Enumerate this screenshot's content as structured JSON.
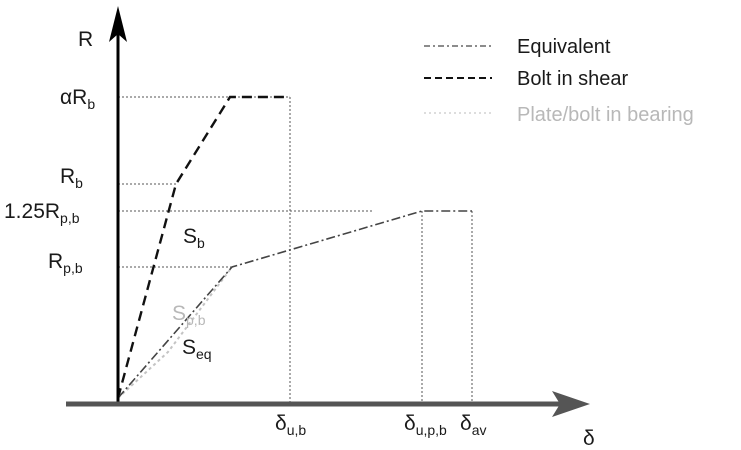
{
  "axes": {
    "y_label": "R",
    "x_label": "δ"
  },
  "y_ticks": [
    {
      "main": "αR",
      "sub": "b"
    },
    {
      "main": "R",
      "sub": "b"
    },
    {
      "main": "1.25R",
      "sub": "p,b"
    },
    {
      "main": "R",
      "sub": "p,b"
    }
  ],
  "x_ticks": [
    {
      "main": "δ",
      "sub": "u,b"
    },
    {
      "main": "δ",
      "sub": "u,p,b"
    },
    {
      "main": "δ",
      "sub": "av"
    }
  ],
  "curve_labels": {
    "bolt": {
      "main": "S",
      "sub": "b"
    },
    "plate": {
      "main": "S",
      "sub": "p,b"
    },
    "equivalent": {
      "main": "S",
      "sub": "eq"
    }
  },
  "legend": [
    {
      "label": "Equivalent",
      "style": "dash-dot",
      "color": "#444444"
    },
    {
      "label": "Bolt in shear",
      "style": "dashed",
      "color": "#111111"
    },
    {
      "label": "Plate/bolt in bearing",
      "style": "dotted",
      "color": "#c4c4c4"
    }
  ]
}
